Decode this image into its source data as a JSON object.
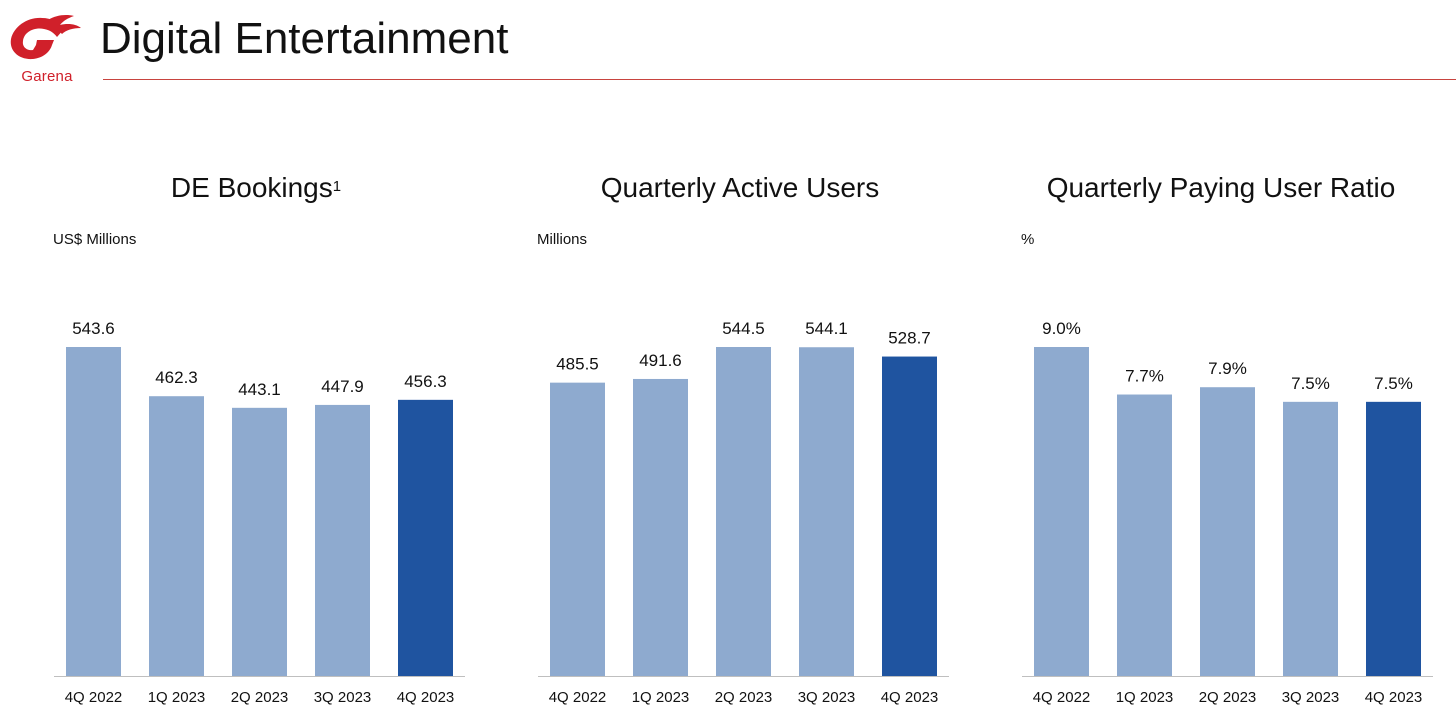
{
  "header": {
    "title": "Digital Entertainment",
    "logo_text": "Garena",
    "logo_color": "#d0202a",
    "rule_color": "#c8443f"
  },
  "colors": {
    "bar": "#8eaacf",
    "highlight": "#1f54a0"
  },
  "chart_data": [
    {
      "type": "bar",
      "title": "DE Bookings",
      "title_superscript": "1",
      "unit_label": "US$ Millions",
      "categories": [
        "4Q 2022",
        "1Q 2023",
        "2Q 2023",
        "3Q 2023",
        "4Q 2023"
      ],
      "values": [
        543.6,
        462.3,
        443.1,
        447.9,
        456.3
      ],
      "value_labels": [
        "543.6",
        "462.3",
        "443.1",
        "447.9",
        "456.3"
      ],
      "ylim": [
        0,
        543.6
      ],
      "highlight_index": 4,
      "grid": false
    },
    {
      "type": "bar",
      "title": "Quarterly Active Users",
      "title_superscript": "",
      "unit_label": "Millions",
      "categories": [
        "4Q 2022",
        "1Q 2023",
        "2Q 2023",
        "3Q 2023",
        "4Q 2023"
      ],
      "values": [
        485.5,
        491.6,
        544.5,
        544.1,
        528.7
      ],
      "value_labels": [
        "485.5",
        "491.6",
        "544.5",
        "544.1",
        "528.7"
      ],
      "ylim": [
        0,
        544.5
      ],
      "highlight_index": 4,
      "grid": false
    },
    {
      "type": "bar",
      "title": "Quarterly Paying User Ratio",
      "title_superscript": "",
      "unit_label": "%",
      "categories": [
        "4Q 2022",
        "1Q 2023",
        "2Q 2023",
        "3Q 2023",
        "4Q 2023"
      ],
      "values": [
        9.0,
        7.7,
        7.9,
        7.5,
        7.5
      ],
      "value_labels": [
        "9.0%",
        "7.7%",
        "7.9%",
        "7.5%",
        "7.5%"
      ],
      "ylim": [
        0,
        9.0
      ],
      "highlight_index": 4,
      "grid": false
    }
  ]
}
